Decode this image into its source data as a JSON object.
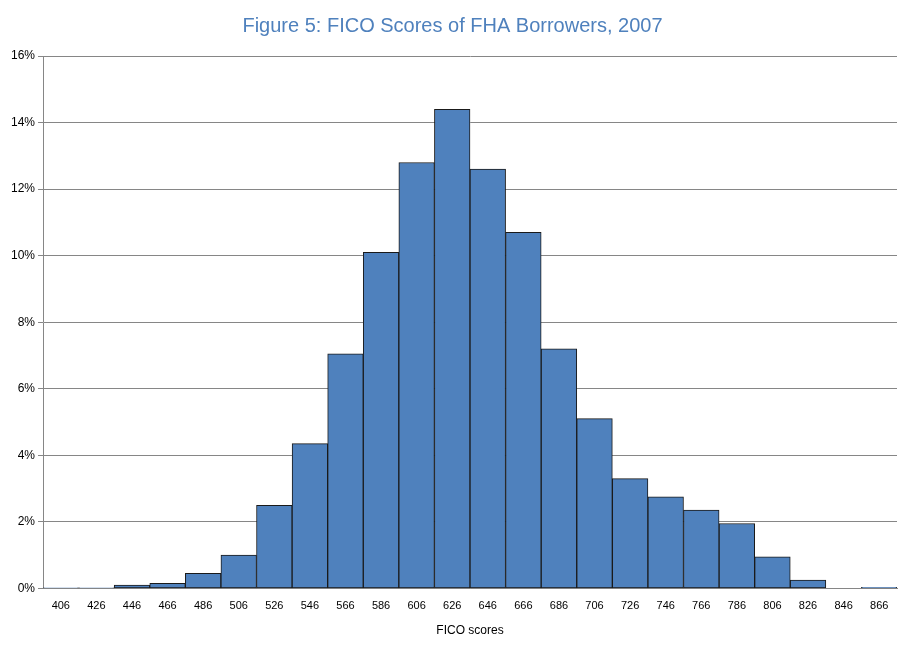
{
  "chart_data": {
    "type": "bar",
    "title": "Figure 5: FICO Scores of FHA Borrowers, 2007",
    "x_label": "FICO scores",
    "categories": [
      "406",
      "426",
      "446",
      "466",
      "486",
      "506",
      "526",
      "546",
      "566",
      "586",
      "606",
      "626",
      "646",
      "666",
      "686",
      "706",
      "726",
      "746",
      "766",
      "786",
      "806",
      "826",
      "846",
      "866"
    ],
    "values": [
      0.02,
      0.02,
      0.1,
      0.15,
      0.45,
      1.0,
      2.5,
      4.35,
      7.05,
      10.1,
      12.8,
      14.4,
      12.6,
      10.7,
      7.2,
      5.1,
      3.3,
      2.75,
      2.35,
      1.95,
      0.95,
      0.25,
      0,
      0.03
    ],
    "color": "#4f81bd",
    "ylim": [
      0,
      16
    ],
    "yticks": [
      {
        "value": 0,
        "label": "0%"
      },
      {
        "value": 2,
        "label": "2%"
      },
      {
        "value": 4,
        "label": "4%"
      },
      {
        "value": 6,
        "label": "6%"
      },
      {
        "value": 8,
        "label": "8%"
      },
      {
        "value": 10,
        "label": "10%"
      },
      {
        "value": 12,
        "label": "12%"
      },
      {
        "value": 14,
        "label": "14%"
      },
      {
        "value": 16,
        "label": "16%"
      }
    ],
    "grid": true
  }
}
